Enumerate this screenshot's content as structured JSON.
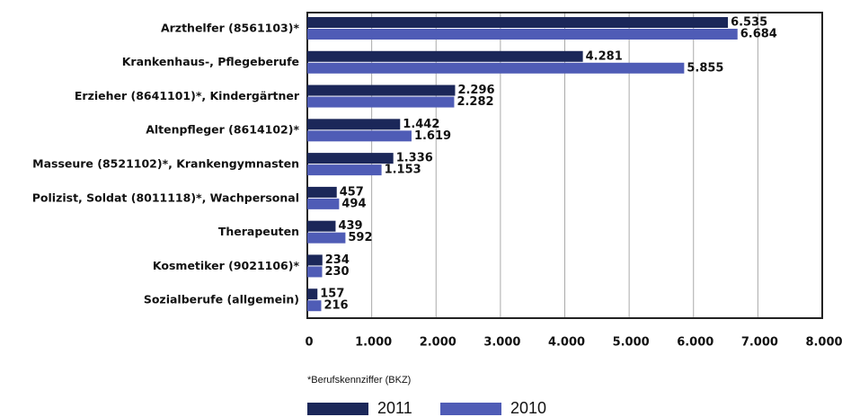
{
  "chart_data": {
    "type": "bar",
    "orientation": "horizontal",
    "categories": [
      "Arzthelfer (8561103)*",
      "Krankenhaus-, Pflegeberufe",
      "Erzieher (8641101)*, Kindergärtner",
      "Altenpfleger (8614102)*",
      "Masseure (8521102)*, Krankengymnasten",
      "Polizist, Soldat (8011118)*, Wachpersonal",
      "Therapeuten",
      "Kosmetiker (9021106)*",
      "Sozialberufe (allgemein)"
    ],
    "series": [
      {
        "name": "2011",
        "color": "#1b2759",
        "values": [
          6535,
          4281,
          2296,
          1442,
          1336,
          457,
          439,
          234,
          157
        ],
        "value_labels": [
          "6.535",
          "4.281",
          "2.296",
          "1.442",
          "1.336",
          "457",
          "439",
          "234",
          "157"
        ]
      },
      {
        "name": "2010",
        "color": "#4f5cb6",
        "values": [
          6684,
          5855,
          2282,
          1619,
          1153,
          494,
          592,
          230,
          216
        ],
        "value_labels": [
          "6.684",
          "5.855",
          "2.282",
          "1.619",
          "1.153",
          "494",
          "592",
          "230",
          "216"
        ]
      }
    ],
    "xlim": [
      0,
      8000
    ],
    "xticks": [
      0,
      {
        "value": 1000,
        "label": "1.000"
      },
      {
        "value": 2000,
        "label": "2.000"
      },
      {
        "value": 3000,
        "label": "3.000"
      },
      {
        "value": 4000,
        "label": "4.000"
      },
      {
        "value": 5000,
        "label": "5.000"
      },
      {
        "value": 6000,
        "label": "6.000"
      },
      {
        "value": 7000,
        "label": "7.000"
      },
      {
        "value": 8000,
        "label": "8.000"
      }
    ],
    "grid": true,
    "footnote": "*Berufskennziffer (BKZ)"
  }
}
